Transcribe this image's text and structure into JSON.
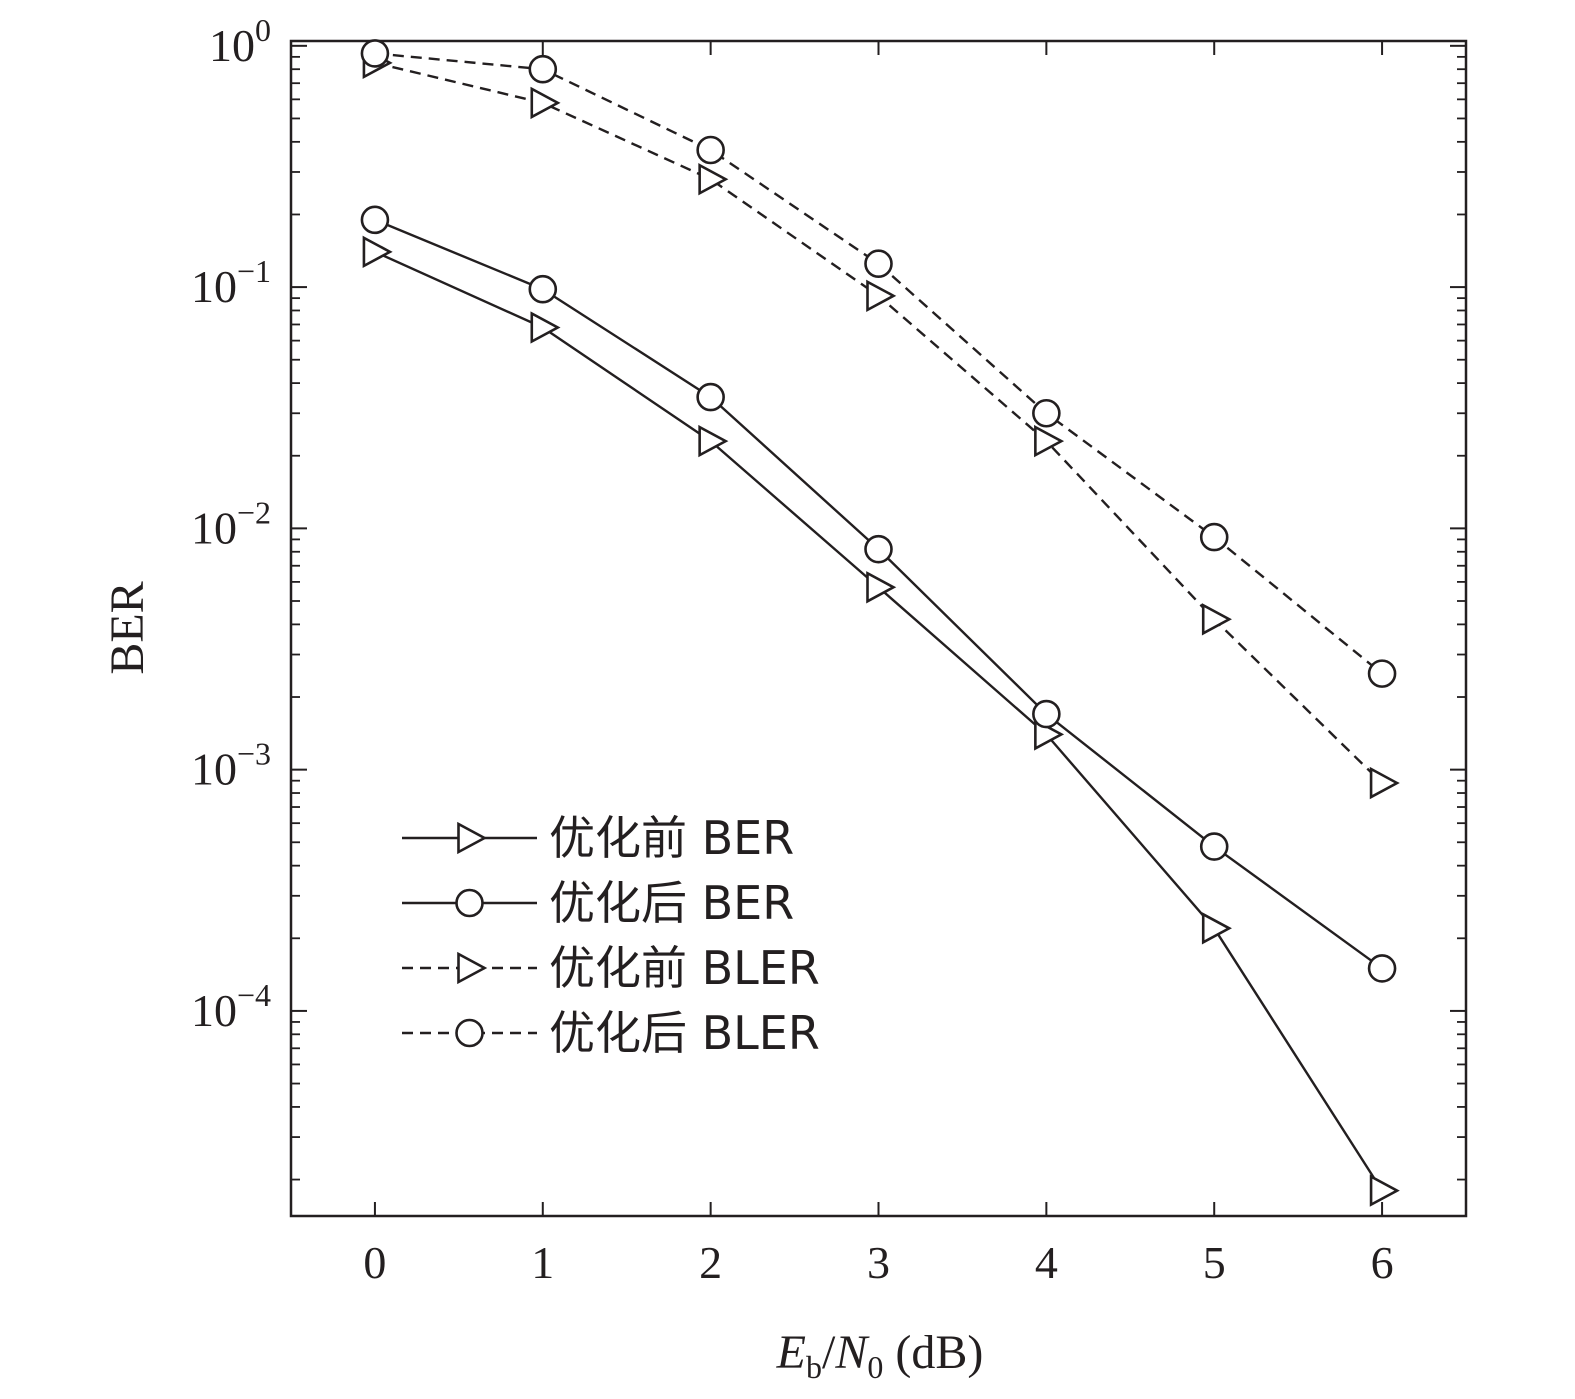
{
  "chart_data": {
    "type": "line",
    "title": "",
    "xlabel": {
      "main": "E",
      "main_sub": "b",
      "slash": "/",
      "second": "N",
      "second_sub": "0",
      "unit": " (dB)"
    },
    "ylabel": "BER",
    "xlim": [
      -0.5,
      6.5
    ],
    "ylim_log10": [
      -4.85,
      0.02
    ],
    "yscale": "log",
    "grid": false,
    "x": [
      0,
      1,
      2,
      3,
      4,
      5,
      6
    ],
    "x_ticks": [
      "0",
      "1",
      "2",
      "3",
      "4",
      "5",
      "6"
    ],
    "y_ticks": [
      {
        "base": "10",
        "exp": "0",
        "value": 1
      },
      {
        "base": "10",
        "exp": "−1",
        "value": 0.1
      },
      {
        "base": "10",
        "exp": "−2",
        "value": 0.01
      },
      {
        "base": "10",
        "exp": "−3",
        "value": 0.001
      },
      {
        "base": "10",
        "exp": "−4",
        "value": 0.0001
      }
    ],
    "legend_position": "lower-left",
    "series": [
      {
        "name": "优化前 BER",
        "marker": "triangle-right",
        "line": "solid",
        "values": [
          0.14,
          0.068,
          0.023,
          0.0057,
          0.0014,
          0.00022,
          1.8e-05
        ]
      },
      {
        "name": "优化后 BER",
        "marker": "circle",
        "line": "solid",
        "values": [
          0.19,
          0.098,
          0.035,
          0.0082,
          0.0017,
          0.00048,
          0.00015
        ]
      },
      {
        "name": "优化前 BLER",
        "marker": "triangle-right",
        "line": "dashed",
        "values": [
          0.85,
          0.58,
          0.28,
          0.092,
          0.023,
          0.0042,
          0.00088
        ]
      },
      {
        "name": "优化后 BLER",
        "marker": "circle",
        "line": "dashed",
        "values": [
          0.93,
          0.8,
          0.37,
          0.125,
          0.03,
          0.0092,
          0.0025
        ]
      }
    ],
    "colors": {
      "ink": "#231f20",
      "background": "#ffffff"
    }
  }
}
